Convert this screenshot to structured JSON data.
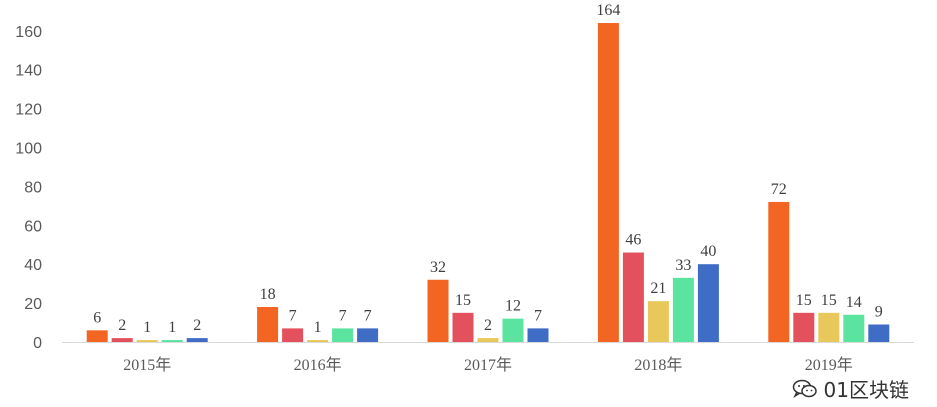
{
  "chart_data": {
    "type": "bar",
    "categories": [
      "2015年",
      "2016年",
      "2017年",
      "2018年",
      "2019年"
    ],
    "series": [
      {
        "color": "#F26522",
        "values": [
          6,
          18,
          32,
          164,
          72
        ]
      },
      {
        "color": "#E3525C",
        "values": [
          2,
          7,
          15,
          46,
          15
        ]
      },
      {
        "color": "#E8C85A",
        "values": [
          1,
          1,
          2,
          21,
          15
        ]
      },
      {
        "color": "#5BE3A0",
        "values": [
          1,
          7,
          12,
          33,
          14
        ]
      },
      {
        "color": "#3F6CC5",
        "values": [
          2,
          7,
          7,
          40,
          9
        ]
      }
    ],
    "ylim": [
      0,
      180
    ],
    "yticks": [
      0,
      20,
      40,
      60,
      80,
      100,
      120,
      140,
      160
    ],
    "grid": false,
    "data_labels": true
  },
  "watermark": {
    "text": "01区块链",
    "icon": "wechat-icon"
  }
}
